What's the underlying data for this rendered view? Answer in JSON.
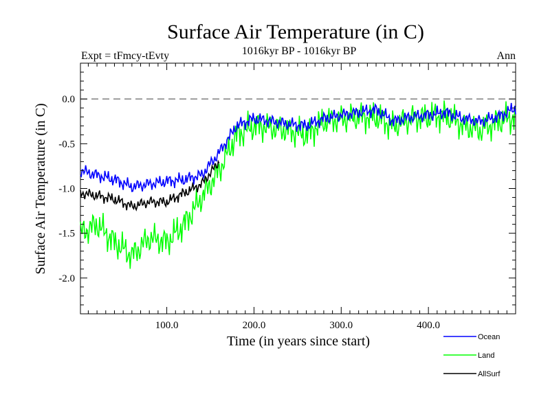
{
  "chart_data": {
    "type": "line",
    "title": "Surface Air Temperature (in C)",
    "subtitle": "1016kyr BP - 1016kyr BP",
    "left_note": "Expt = tFmcy-tEvty",
    "right_note": "Ann",
    "xlabel": "Time (in years since start)",
    "ylabel": "Surface Air Temperature (in C)",
    "xlim": [
      1,
      500
    ],
    "ylim": [
      -2.4,
      0.4
    ],
    "x_ticks": [
      100,
      200,
      300,
      400
    ],
    "x_tick_labels": [
      "100.0",
      "200.0",
      "300.0",
      "400.0"
    ],
    "y_ticks": [
      -2.0,
      -1.5,
      -1.0,
      -0.5,
      0.0
    ],
    "y_tick_labels": [
      "-2.0",
      "-1.5",
      "-1.0",
      "-0.5",
      "0.0"
    ],
    "reference_line": {
      "y": 0.0,
      "style": "dashed"
    },
    "legend_position": "bottom-right",
    "series": [
      {
        "name": "Ocean",
        "color": "#0000ff",
        "x": [
          1,
          20,
          40,
          60,
          80,
          100,
          120,
          140,
          160,
          180,
          200,
          220,
          240,
          260,
          280,
          300,
          320,
          340,
          360,
          380,
          400,
          420,
          440,
          460,
          480,
          500
        ],
        "values": [
          -0.8,
          -0.85,
          -0.9,
          -0.98,
          -0.95,
          -0.92,
          -0.9,
          -0.85,
          -0.6,
          -0.3,
          -0.22,
          -0.25,
          -0.28,
          -0.3,
          -0.22,
          -0.18,
          -0.15,
          -0.12,
          -0.25,
          -0.2,
          -0.18,
          -0.15,
          -0.22,
          -0.25,
          -0.2,
          -0.1
        ]
      },
      {
        "name": "Land",
        "color": "#00ff00",
        "x": [
          1,
          20,
          40,
          60,
          80,
          100,
          120,
          140,
          160,
          180,
          200,
          220,
          240,
          260,
          280,
          300,
          320,
          340,
          360,
          380,
          400,
          420,
          440,
          460,
          480,
          500
        ],
        "values": [
          -1.5,
          -1.4,
          -1.6,
          -1.75,
          -1.55,
          -1.6,
          -1.4,
          -1.1,
          -0.8,
          -0.4,
          -0.3,
          -0.32,
          -0.35,
          -0.4,
          -0.25,
          -0.22,
          -0.2,
          -0.2,
          -0.3,
          -0.22,
          -0.2,
          -0.18,
          -0.3,
          -0.35,
          -0.25,
          -0.2
        ]
      },
      {
        "name": "AllSurf",
        "color": "#000000",
        "x": [
          1,
          20,
          40,
          60,
          80,
          100,
          120,
          140,
          160
        ],
        "values": [
          -1.05,
          -1.08,
          -1.12,
          -1.2,
          -1.15,
          -1.15,
          -1.05,
          -0.95,
          -0.7
        ]
      }
    ]
  }
}
